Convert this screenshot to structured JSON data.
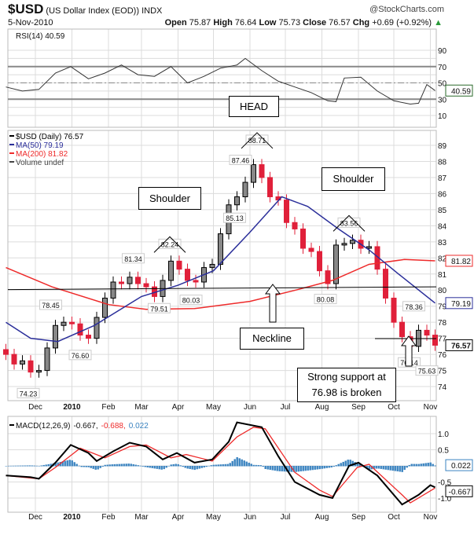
{
  "header": {
    "symbol": "$USD",
    "name": "(US Dollar Index (EOD))",
    "exchange": "INDX",
    "date": "5-Nov-2010",
    "brand": "@StockCharts.com",
    "open_label": "Open",
    "open": "75.87",
    "high_label": "High",
    "high": "76.64",
    "low_label": "Low",
    "low": "75.73",
    "close_label": "Close",
    "close": "76.57",
    "chg_label": "Chg",
    "chg": "+0.69 (+0.92%)"
  },
  "colors": {
    "up": "#000000",
    "down": "#e0203a",
    "ma50": "#2b2f9a",
    "ma200": "#ee2a2a",
    "rsi": "#333333",
    "macd": "#000000",
    "signal": "#ee2a2a",
    "hist": "#3a83c0",
    "grid": "#dcdcdc"
  },
  "chart_data": [
    {
      "type": "line",
      "panel": "RSI",
      "legend": "RSI(14) 40.59",
      "ylim": [
        0,
        100
      ],
      "yticks": [
        10,
        30,
        50,
        70,
        90
      ],
      "reference_lines": [
        30,
        50,
        70
      ],
      "last_value": "40.59",
      "series": [
        {
          "name": "RSI(14)",
          "points": [
            [
              "2009-11-06",
              45
            ],
            [
              "2009-11-20",
              40
            ],
            [
              "2009-12-04",
              42
            ],
            [
              "2009-12-18",
              62
            ],
            [
              "2009-12-31",
              70
            ],
            [
              "2010-01-15",
              55
            ],
            [
              "2010-01-29",
              62
            ],
            [
              "2010-02-12",
              72
            ],
            [
              "2010-02-26",
              60
            ],
            [
              "2010-03-12",
              58
            ],
            [
              "2010-03-26",
              70
            ],
            [
              "2010-04-09",
              50
            ],
            [
              "2010-04-23",
              58
            ],
            [
              "2010-05-07",
              68
            ],
            [
              "2010-05-21",
              72
            ],
            [
              "2010-05-28",
              80
            ],
            [
              "2010-06-11",
              65
            ],
            [
              "2010-06-25",
              52
            ],
            [
              "2010-07-09",
              45
            ],
            [
              "2010-07-23",
              38
            ],
            [
              "2010-08-06",
              28
            ],
            [
              "2010-08-13",
              27
            ],
            [
              "2010-08-20",
              56
            ],
            [
              "2010-09-03",
              57
            ],
            [
              "2010-09-17",
              40
            ],
            [
              "2010-10-01",
              28
            ],
            [
              "2010-10-15",
              24
            ],
            [
              "2010-10-22",
              25
            ],
            [
              "2010-10-29",
              48
            ],
            [
              "2010-11-05",
              40.59
            ]
          ]
        }
      ]
    },
    {
      "type": "candlestick",
      "panel": "Price",
      "legend": [
        "$USD (Daily) 76.57",
        "MA(50) 79.19",
        "MA(200) 81.82",
        "Volume undef"
      ],
      "ylim": [
        73.5,
        89.5
      ],
      "yticks": [
        74,
        75,
        76,
        77,
        78,
        79,
        80,
        81,
        82,
        83,
        84,
        85,
        86,
        87,
        88,
        89
      ],
      "xticks": [
        "Dec",
        "2010",
        "Feb",
        "Mar",
        "Apr",
        "May",
        "Jun",
        "Jul",
        "Aug",
        "Sep",
        "Oct",
        "Nov"
      ],
      "xtick_dates": [
        "2009-12-01",
        "2010-01-01",
        "2010-02-01",
        "2010-03-01",
        "2010-04-01",
        "2010-05-01",
        "2010-06-01",
        "2010-07-01",
        "2010-08-01",
        "2010-09-01",
        "2010-10-01",
        "2010-11-01"
      ],
      "weekly_close": [
        [
          "2009-11-06",
          76.0
        ],
        [
          "2009-11-13",
          75.4
        ],
        [
          "2009-11-20",
          75.6
        ],
        [
          "2009-11-27",
          74.9
        ],
        [
          "2009-12-04",
          75.0
        ],
        [
          "2009-12-11",
          76.4
        ],
        [
          "2009-12-18",
          77.8
        ],
        [
          "2009-12-25",
          78.0
        ],
        [
          "2010-01-01",
          77.9
        ],
        [
          "2010-01-08",
          77.2
        ],
        [
          "2010-01-15",
          77.0
        ],
        [
          "2010-01-22",
          78.3
        ],
        [
          "2010-01-29",
          79.5
        ],
        [
          "2010-02-05",
          80.5
        ],
        [
          "2010-02-12",
          80.4
        ],
        [
          "2010-02-19",
          80.8
        ],
        [
          "2010-02-26",
          80.4
        ],
        [
          "2010-03-05",
          80.2
        ],
        [
          "2010-03-12",
          79.6
        ],
        [
          "2010-03-19",
          80.6
        ],
        [
          "2010-03-26",
          81.8
        ],
        [
          "2010-04-02",
          81.3
        ],
        [
          "2010-04-09",
          80.6
        ],
        [
          "2010-04-16",
          80.5
        ],
        [
          "2010-04-23",
          81.4
        ],
        [
          "2010-04-30",
          81.6
        ],
        [
          "2010-05-07",
          83.5
        ],
        [
          "2010-05-14",
          85.3
        ],
        [
          "2010-05-21",
          85.8
        ],
        [
          "2010-05-28",
          86.7
        ],
        [
          "2010-06-04",
          87.8
        ],
        [
          "2010-06-11",
          87.0
        ],
        [
          "2010-06-18",
          85.8
        ],
        [
          "2010-06-25",
          85.6
        ],
        [
          "2010-07-02",
          84.2
        ],
        [
          "2010-07-09",
          83.8
        ],
        [
          "2010-07-16",
          82.6
        ],
        [
          "2010-07-23",
          82.4
        ],
        [
          "2010-07-30",
          81.2
        ],
        [
          "2010-08-06",
          80.4
        ],
        [
          "2010-08-13",
          82.8
        ],
        [
          "2010-08-20",
          82.9
        ],
        [
          "2010-08-27",
          83.1
        ],
        [
          "2010-09-03",
          82.6
        ],
        [
          "2010-09-10",
          82.7
        ],
        [
          "2010-09-17",
          81.3
        ],
        [
          "2010-09-24",
          79.5
        ],
        [
          "2010-10-01",
          78.0
        ],
        [
          "2010-10-08",
          77.1
        ],
        [
          "2010-10-15",
          76.5
        ],
        [
          "2010-10-22",
          77.5
        ],
        [
          "2010-10-29",
          77.2
        ],
        [
          "2010-11-05",
          76.57
        ]
      ],
      "ma50": [
        [
          "2009-11-06",
          78.0
        ],
        [
          "2009-11-27",
          77.0
        ],
        [
          "2009-12-20",
          76.8
        ],
        [
          "2010-01-20",
          77.8
        ],
        [
          "2010-03-01",
          79.6
        ],
        [
          "2010-04-01",
          80.3
        ],
        [
          "2010-05-01",
          81.2
        ],
        [
          "2010-06-01",
          83.6
        ],
        [
          "2010-06-28",
          85.8
        ],
        [
          "2010-07-20",
          85.2
        ],
        [
          "2010-08-15",
          83.8
        ],
        [
          "2010-09-10",
          82.5
        ],
        [
          "2010-10-05",
          81.0
        ],
        [
          "2010-11-05",
          79.19
        ]
      ],
      "ma200": [
        [
          "2009-11-06",
          81.4
        ],
        [
          "2009-12-15",
          80.2
        ],
        [
          "2010-02-01",
          79.1
        ],
        [
          "2010-03-05",
          78.8
        ],
        [
          "2010-04-15",
          78.85
        ],
        [
          "2010-06-01",
          79.3
        ],
        [
          "2010-07-10",
          80.0
        ],
        [
          "2010-08-10",
          80.6
        ],
        [
          "2010-09-10",
          81.6
        ],
        [
          "2010-10-10",
          81.9
        ],
        [
          "2010-11-05",
          81.82
        ]
      ],
      "point_labels": [
        [
          "2009-11-25",
          74.23,
          "74.23",
          "below"
        ],
        [
          "2009-12-14",
          78.45,
          "78.45",
          "above"
        ],
        [
          "2010-01-08",
          76.6,
          "76.60",
          "below"
        ],
        [
          "2010-02-22",
          81.34,
          "81.34",
          "above"
        ],
        [
          "2010-03-16",
          79.51,
          "79.51",
          "below"
        ],
        [
          "2010-03-25",
          82.24,
          "82.24",
          "above"
        ],
        [
          "2010-04-12",
          80.03,
          "80.03",
          "below"
        ],
        [
          "2010-05-19",
          85.13,
          "85.13",
          "below"
        ],
        [
          "2010-05-24",
          87.46,
          "87.46",
          "above"
        ],
        [
          "2010-06-07",
          88.71,
          "88.71",
          "above"
        ],
        [
          "2010-08-04",
          80.08,
          "80.08",
          "below"
        ],
        [
          "2010-08-24",
          83.56,
          "83.56",
          "above"
        ],
        [
          "2010-10-18",
          78.36,
          "78.36",
          "above"
        ],
        [
          "2010-10-14",
          76.14,
          "76.14",
          "below"
        ],
        [
          "2010-11-04",
          75.63,
          "75.63",
          "below"
        ]
      ],
      "neckline": [
        [
          "2009-11-06",
          80.03
        ],
        [
          "2010-11-05",
          80.2
        ]
      ],
      "support_line": [
        [
          "2010-09-15",
          76.98
        ],
        [
          "2010-11-05",
          76.98
        ]
      ],
      "value_tags": [
        [
          "81.82",
          "ma200"
        ],
        [
          "79.19",
          "ma50"
        ],
        [
          "76.57",
          "close"
        ]
      ]
    },
    {
      "type": "line",
      "panel": "MACD",
      "legend": {
        "label": "MACD(12,26,9)",
        "macd": "-0.667,",
        "signal": "-0.688,",
        "hist": "0.022"
      },
      "ylim": [
        -1.5,
        1.5
      ],
      "yticks": [
        "1.0",
        "0.5",
        "-0.5",
        "-1.0"
      ],
      "ytick_values": [
        1.0,
        0.5,
        -0.5,
        -1.0
      ],
      "macd": [
        [
          "2009-11-06",
          -0.3
        ],
        [
          "2009-11-27",
          -0.35
        ],
        [
          "2009-12-04",
          -0.4
        ],
        [
          "2009-12-18",
          0.1
        ],
        [
          "2009-12-31",
          0.65
        ],
        [
          "2010-01-15",
          0.4
        ],
        [
          "2010-01-22",
          0.15
        ],
        [
          "2010-02-05",
          0.45
        ],
        [
          "2010-02-19",
          0.72
        ],
        [
          "2010-03-05",
          0.6
        ],
        [
          "2010-03-19",
          0.2
        ],
        [
          "2010-03-31",
          0.4
        ],
        [
          "2010-04-15",
          0.1
        ],
        [
          "2010-04-30",
          0.2
        ],
        [
          "2010-05-14",
          0.75
        ],
        [
          "2010-05-21",
          1.35
        ],
        [
          "2010-06-11",
          1.2
        ],
        [
          "2010-06-25",
          0.3
        ],
        [
          "2010-07-09",
          -0.5
        ],
        [
          "2010-07-30",
          -0.9
        ],
        [
          "2010-08-10",
          -1.0
        ],
        [
          "2010-08-24",
          0.0
        ],
        [
          "2010-09-01",
          0.1
        ],
        [
          "2010-09-17",
          -0.3
        ],
        [
          "2010-10-08",
          -1.2
        ],
        [
          "2010-10-22",
          -0.9
        ],
        [
          "2010-11-01",
          -0.6
        ],
        [
          "2010-11-05",
          -0.667
        ]
      ],
      "signal": [
        [
          "2009-11-06",
          -0.3
        ],
        [
          "2009-12-04",
          -0.4
        ],
        [
          "2009-12-18",
          -0.05
        ],
        [
          "2010-01-08",
          0.55
        ],
        [
          "2010-01-29",
          0.25
        ],
        [
          "2010-02-19",
          0.6
        ],
        [
          "2010-03-05",
          0.65
        ],
        [
          "2010-03-26",
          0.25
        ],
        [
          "2010-04-08",
          0.35
        ],
        [
          "2010-04-30",
          0.15
        ],
        [
          "2010-05-21",
          0.9
        ],
        [
          "2010-06-04",
          1.2
        ],
        [
          "2010-06-14",
          1.15
        ],
        [
          "2010-07-09",
          -0.2
        ],
        [
          "2010-07-30",
          -0.75
        ],
        [
          "2010-08-10",
          -0.95
        ],
        [
          "2010-08-31",
          -0.05
        ],
        [
          "2010-09-10",
          0.05
        ],
        [
          "2010-10-08",
          -0.9
        ],
        [
          "2010-10-15",
          -1.15
        ],
        [
          "2010-11-05",
          -0.688
        ]
      ],
      "value_tags": [
        "0.022",
        "-0.667"
      ]
    }
  ],
  "annotations": {
    "head": "HEAD",
    "shoulder_left": "Shoulder",
    "shoulder_right": "Shoulder",
    "neckline": "Neckline",
    "support_1": "Strong support at",
    "support_2": "76.98 is broken"
  }
}
